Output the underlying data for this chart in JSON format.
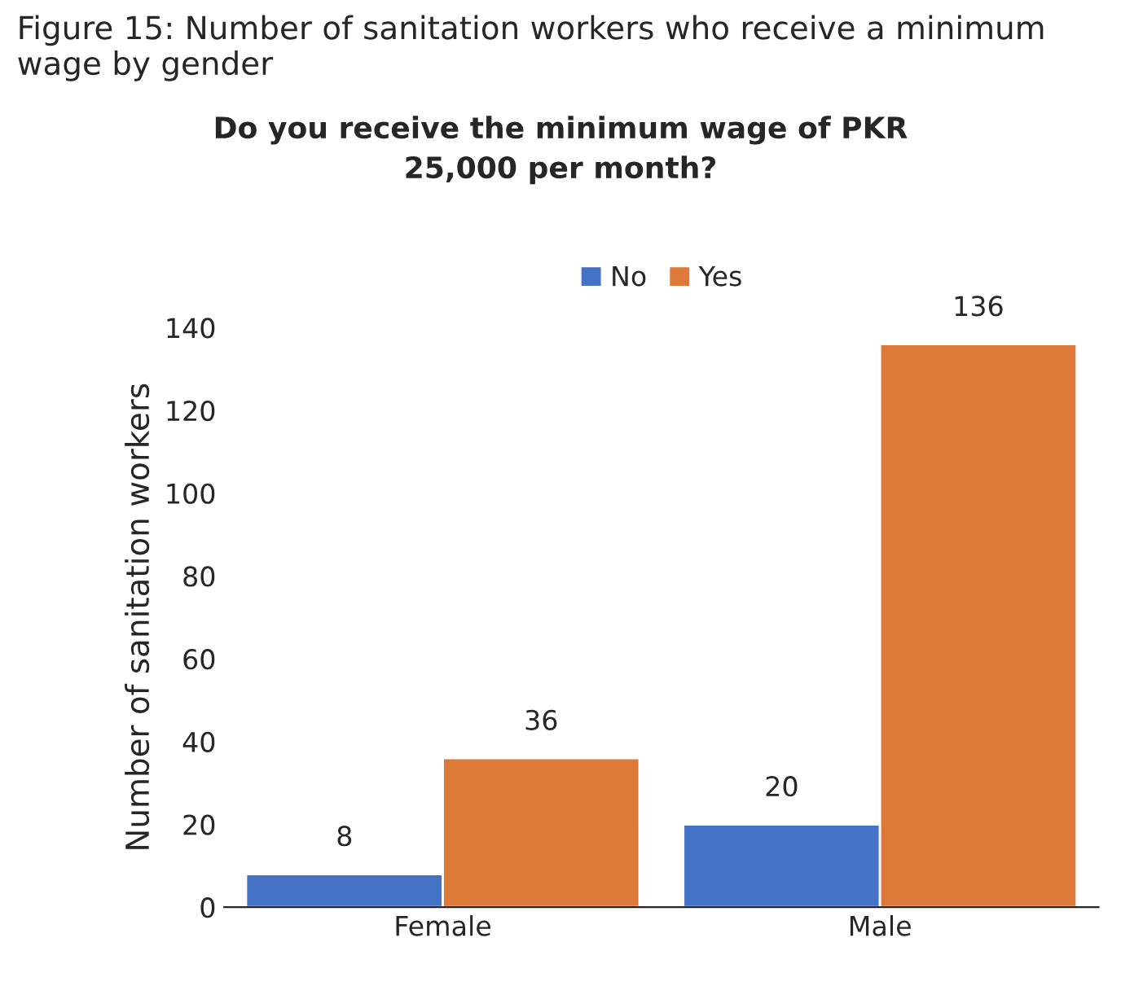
{
  "chart_data": {
    "type": "bar",
    "title": "Figure 15: Number of sanitation workers who receive a minimum wage by gender",
    "subtitle": "Do you receive the minimum wage of PKR\n25,000 per month?",
    "ylabel": "Number of sanitation workers",
    "categories": [
      "Female",
      "Male"
    ],
    "series": [
      {
        "name": "No",
        "color": "#4472c4",
        "values": [
          8,
          20
        ]
      },
      {
        "name": "Yes",
        "color": "#dd7a3a",
        "values": [
          36,
          136
        ]
      }
    ],
    "ylim": [
      0,
      140
    ],
    "yticks": [
      0,
      20,
      40,
      60,
      80,
      100,
      120,
      140
    ],
    "grid": false,
    "legend": "top",
    "data_labels": true
  }
}
